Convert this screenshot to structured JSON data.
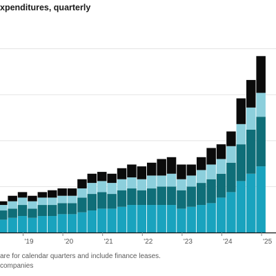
{
  "title": "xpenditures, quarterly",
  "notes": [
    "are for calendar quarters and include finance leases.",
    "companies"
  ],
  "colors": {
    "seg1": "#19a3be",
    "seg2": "#0f6e78",
    "seg3": "#8ccfdc",
    "seg4": "#0b0b0b",
    "grid": "#e3e3e3",
    "axis": "#8a8a8a",
    "baseline": "#111111"
  },
  "chart_data": {
    "type": "bar",
    "stacked": true,
    "ylim": [
      0,
      110
    ],
    "grid": true,
    "x_tick_labels": [
      "'19",
      "'20",
      "'21",
      "'22",
      "'23",
      "'24",
      "'25"
    ],
    "x_tick_after_bar": [
      2,
      6,
      10,
      14,
      18,
      22,
      26
    ],
    "series": [
      {
        "values": [
          7,
          8,
          9,
          8,
          9,
          9,
          10,
          10,
          11,
          12,
          13,
          13,
          14,
          15,
          15,
          15,
          15,
          15,
          13,
          14,
          15,
          16,
          19,
          22,
          28,
          32,
          36
        ]
      },
      {
        "values": [
          5,
          5,
          6,
          5,
          6,
          6,
          6,
          6,
          8,
          9,
          9,
          8,
          9,
          9,
          8,
          9,
          10,
          10,
          10,
          11,
          12,
          13,
          13,
          16,
          20,
          24,
          27
        ]
      },
      {
        "values": [
          3,
          4,
          4,
          4,
          4,
          4,
          4,
          4,
          5,
          6,
          6,
          6,
          6,
          6,
          6,
          7,
          6,
          7,
          6,
          6,
          7,
          8,
          8,
          9,
          11,
          12,
          13
        ]
      },
      {
        "values": [
          2,
          3,
          3,
          3,
          3,
          4,
          4,
          4,
          5,
          5,
          5,
          5,
          6,
          7,
          7,
          7,
          9,
          9,
          8,
          6,
          7,
          9,
          8,
          8,
          14,
          15,
          20
        ]
      }
    ]
  }
}
